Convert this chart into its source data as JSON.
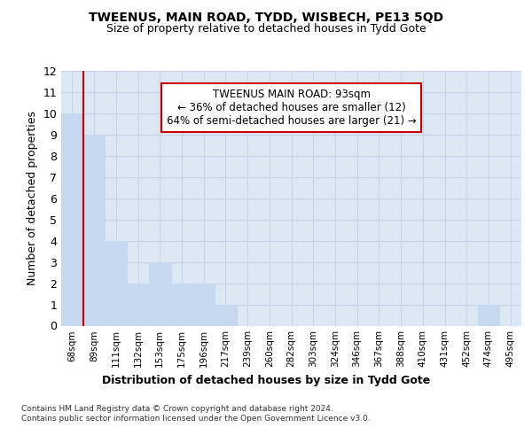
{
  "title": "TWEENUS, MAIN ROAD, TYDD, WISBECH, PE13 5QD",
  "subtitle": "Size of property relative to detached houses in Tydd Gote",
  "xlabel": "Distribution of detached houses by size in Tydd Gote",
  "ylabel": "Number of detached properties",
  "bins": [
    "68sqm",
    "89sqm",
    "111sqm",
    "132sqm",
    "153sqm",
    "175sqm",
    "196sqm",
    "217sqm",
    "239sqm",
    "260sqm",
    "282sqm",
    "303sqm",
    "324sqm",
    "346sqm",
    "367sqm",
    "388sqm",
    "410sqm",
    "431sqm",
    "452sqm",
    "474sqm",
    "495sqm"
  ],
  "values": [
    10,
    9,
    4,
    2,
    3,
    2,
    2,
    1,
    0,
    0,
    0,
    0,
    0,
    0,
    0,
    0,
    0,
    0,
    0,
    1,
    0
  ],
  "bar_color": "#c5d8ef",
  "grid_color": "#c8d4e8",
  "marker_line_color": "#cc0000",
  "annotation_line1": "TWEENUS MAIN ROAD: 93sqm",
  "annotation_line2": "← 36% of detached houses are smaller (12)",
  "annotation_line3": "64% of semi-detached houses are larger (21) →",
  "annotation_box_color": "#cc0000",
  "ylim": [
    0,
    12
  ],
  "yticks": [
    0,
    1,
    2,
    3,
    4,
    5,
    6,
    7,
    8,
    9,
    10,
    11,
    12
  ],
  "footnote": "Contains HM Land Registry data © Crown copyright and database right 2024.\nContains public sector information licensed under the Open Government Licence v3.0.",
  "bg_color": "#ffffff",
  "plot_bg_color": "#dde8f5"
}
